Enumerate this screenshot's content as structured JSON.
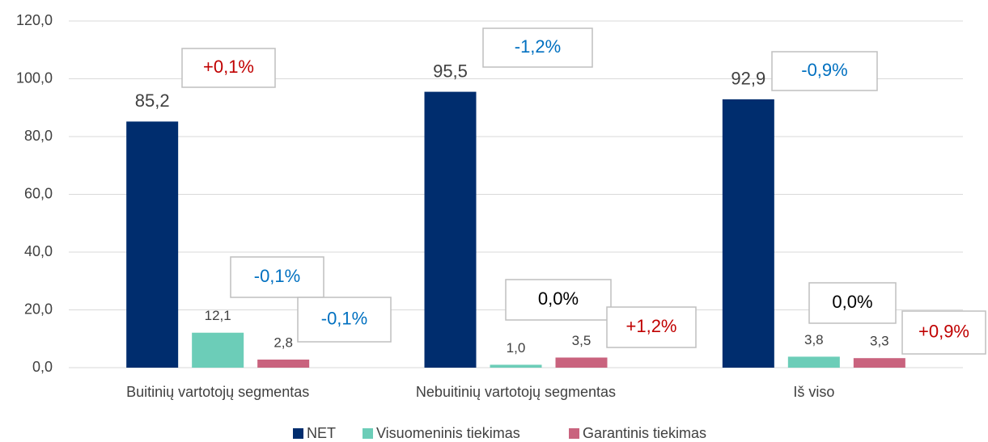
{
  "chart_data": {
    "type": "bar",
    "categories": [
      "Buitinių vartotojų segmentas",
      "Nebuitinių vartotojų segmentas",
      "Iš viso"
    ],
    "series": [
      {
        "name": "NET",
        "color": "#002d6e",
        "values": [
          85.2,
          95.5,
          92.9
        ],
        "value_labels": [
          "85,2",
          "95,5",
          "92,9"
        ],
        "change_labels": [
          "+0,1%",
          "-1,2%",
          "-0,9%"
        ],
        "change_colors": [
          "#c00000",
          "#0070c0",
          "#0070c0"
        ]
      },
      {
        "name": "Visuomeninis tiekimas",
        "color": "#6ccdb8",
        "values": [
          12.1,
          1.0,
          3.8
        ],
        "value_labels": [
          "12,1",
          "1,0",
          "3,8"
        ],
        "change_labels": [
          "-0,1%",
          "0,0%",
          "0,0%"
        ],
        "change_colors": [
          "#0070c0",
          "#000000",
          "#000000"
        ]
      },
      {
        "name": "Garantinis tiekimas",
        "color": "#c9637e",
        "values": [
          2.8,
          3.5,
          3.3
        ],
        "value_labels": [
          "2,8",
          "3,5",
          "3,3"
        ],
        "change_labels": [
          "-0,1%",
          "+1,2%",
          "+0,9%"
        ],
        "change_colors": [
          "#0070c0",
          "#c00000",
          "#c00000"
        ]
      }
    ],
    "ylim": [
      0,
      120
    ],
    "yticks": [
      {
        "value": 0,
        "label": "0,0"
      },
      {
        "value": 20,
        "label": "20,0"
      },
      {
        "value": 40,
        "label": "40,0"
      },
      {
        "value": 60,
        "label": "60,0"
      },
      {
        "value": 80,
        "label": "80,0"
      },
      {
        "value": 100,
        "label": "100,0"
      },
      {
        "value": 120,
        "label": "120,0"
      }
    ],
    "grid": true,
    "legend": "bottom"
  }
}
